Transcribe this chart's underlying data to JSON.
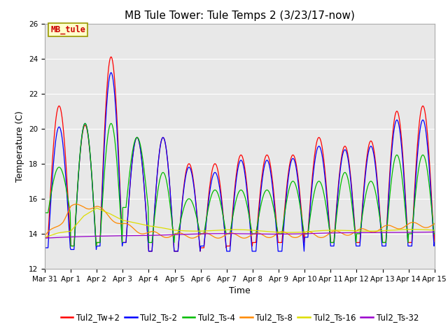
{
  "title": "MB Tule Tower: Tule Temps 2 (3/23/17-now)",
  "xlabel": "Time",
  "ylabel": "Temperature (C)",
  "ylim": [
    12,
    26
  ],
  "yticks": [
    12,
    14,
    16,
    18,
    20,
    22,
    24,
    26
  ],
  "xlim": [
    0,
    15
  ],
  "background_color": "#ffffff",
  "plot_bg_color": "#e8e8e8",
  "annotation_box": "MB_tule",
  "annotation_box_facecolor": "#ffffcc",
  "annotation_box_edgecolor": "#999900",
  "annotation_box_textcolor": "#cc0000",
  "legend_order": [
    "Tul2_Tw+2",
    "Tul2_Ts-2",
    "Tul2_Ts-4",
    "Tul2_Ts-8",
    "Tul2_Ts-16",
    "Tul2_Ts-32"
  ],
  "series_colors": {
    "Tul2_Tw+2": "#ff0000",
    "Tul2_Ts-2": "#0000ff",
    "Tul2_Ts-4": "#00bb00",
    "Tul2_Ts-8": "#ff8800",
    "Tul2_Ts-16": "#dddd00",
    "Tul2_Ts-32": "#9900cc"
  },
  "xtick_positions": [
    0,
    1,
    2,
    3,
    4,
    5,
    6,
    7,
    8,
    9,
    10,
    11,
    12,
    13,
    14,
    15
  ],
  "xtick_labels": [
    "Mar 31",
    "Apr 1",
    "Apr 2",
    "Apr 3",
    "Apr 4",
    "Apr 5",
    "Apr 6",
    "Apr 7",
    "Apr 8",
    "Apr 9",
    "Apr 10",
    "Apr 11",
    "Apr 12",
    "Apr 13",
    "Apr 14",
    "Apr 15"
  ],
  "title_fontsize": 11,
  "axis_label_fontsize": 9,
  "tick_fontsize": 7.5,
  "legend_fontsize": 8.5
}
